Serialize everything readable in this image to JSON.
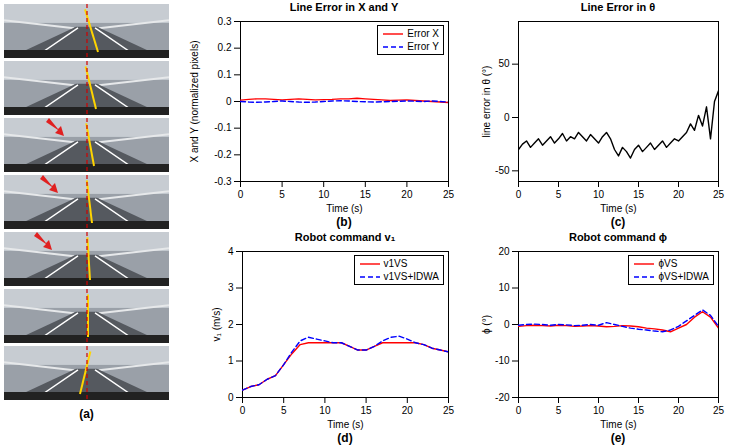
{
  "photo_panel": {
    "panel_label": "(a)"
  },
  "chart_data": [
    {
      "type": "line",
      "title": "Line Error in X and Y",
      "panel_label": "(b)",
      "xlabel": "Time (s)",
      "ylabel": "X and Y (normalized pixels)",
      "xlim": [
        0,
        25
      ],
      "xticks": [
        0,
        5,
        10,
        15,
        20,
        25
      ],
      "ylim": [
        -0.3,
        0.3
      ],
      "yticks": [
        -0.3,
        -0.2,
        -0.1,
        0,
        0.1,
        0.2,
        0.3
      ],
      "legend": "top-right",
      "x": [
        0,
        1,
        2,
        3,
        4,
        5,
        6,
        7,
        8,
        9,
        10,
        11,
        12,
        13,
        14,
        15,
        16,
        17,
        18,
        19,
        20,
        21,
        22,
        23,
        24,
        25
      ],
      "series": [
        {
          "name": "Error X",
          "color": "#ff0000",
          "line_style": "solid",
          "values": [
            0.005,
            0.008,
            0.01,
            0.01,
            0.008,
            0.006,
            0.008,
            0.01,
            0.008,
            0.006,
            0.007,
            0.008,
            0.01,
            0.01,
            0.012,
            0.01,
            0.008,
            0.006,
            0.004,
            0.005,
            0.006,
            0.004,
            0.002,
            0,
            -0.002,
            -0.004
          ]
        },
        {
          "name": "Error Y",
          "color": "#0000ff",
          "line_style": "dashed",
          "values": [
            0,
            -0.002,
            -0.003,
            -0.002,
            0,
            0.002,
            0,
            -0.002,
            -0.003,
            -0.002,
            0,
            0.002,
            0.003,
            0.002,
            0,
            -0.001,
            -0.002,
            -0.001,
            0,
            0.001,
            0.002,
            0.001,
            0,
            0.002,
            0,
            -0.002
          ]
        }
      ]
    },
    {
      "type": "line",
      "title": "Line Error in θ",
      "panel_label": "(c)",
      "xlabel": "Time (s)",
      "ylabel": "line error in θ (°)",
      "xlim": [
        0,
        25
      ],
      "xticks": [
        0,
        5,
        10,
        15,
        20,
        25
      ],
      "ylim": [
        -60,
        90
      ],
      "yticks": [
        -50,
        0,
        50
      ],
      "x": [
        0,
        0.5,
        1,
        1.5,
        2,
        2.5,
        3,
        3.5,
        4,
        4.5,
        5,
        5.5,
        6,
        6.5,
        7,
        7.5,
        8,
        8.5,
        9,
        9.5,
        10,
        10.5,
        11,
        11.5,
        12,
        12.5,
        13,
        13.5,
        14,
        14.5,
        15,
        15.5,
        16,
        16.5,
        17,
        17.5,
        18,
        18.5,
        19,
        19.5,
        20,
        20.5,
        21,
        21.5,
        22,
        22.5,
        23,
        23.5,
        24,
        24.5,
        25
      ],
      "series": [
        {
          "color": "#000000",
          "line_style": "solid",
          "values": [
            -30,
            -25,
            -22,
            -28,
            -24,
            -20,
            -26,
            -22,
            -18,
            -24,
            -20,
            -15,
            -22,
            -18,
            -20,
            -14,
            -18,
            -22,
            -16,
            -20,
            -24,
            -18,
            -14,
            -20,
            -30,
            -36,
            -28,
            -32,
            -38,
            -30,
            -26,
            -32,
            -28,
            -24,
            -30,
            -26,
            -22,
            -28,
            -24,
            -20,
            -22,
            -18,
            -14,
            -6,
            -12,
            2,
            -8,
            10,
            -20,
            15,
            25
          ]
        }
      ]
    },
    {
      "type": "line",
      "title": "Robot command v₁",
      "panel_label": "(d)",
      "xlabel": "Time (s)",
      "ylabel": "v₁ (m/s)",
      "xlim": [
        0,
        25
      ],
      "xticks": [
        0,
        5,
        10,
        15,
        20,
        25
      ],
      "ylim": [
        0,
        4
      ],
      "yticks": [
        0,
        1,
        2,
        3,
        4
      ],
      "legend": "top-right",
      "x": [
        0,
        1,
        2,
        3,
        4,
        5,
        6,
        7,
        8,
        9,
        10,
        11,
        12,
        13,
        14,
        15,
        16,
        17,
        18,
        19,
        20,
        21,
        22,
        23,
        24,
        25
      ],
      "series": [
        {
          "name": "v1VS",
          "color": "#ff0000",
          "line_style": "solid",
          "values": [
            0.2,
            0.3,
            0.35,
            0.5,
            0.6,
            0.9,
            1.2,
            1.45,
            1.5,
            1.5,
            1.5,
            1.5,
            1.5,
            1.4,
            1.3,
            1.3,
            1.4,
            1.5,
            1.5,
            1.5,
            1.5,
            1.5,
            1.45,
            1.35,
            1.3,
            1.25
          ]
        },
        {
          "name": "v1VS+IDWA",
          "color": "#0000ff",
          "line_style": "dashed",
          "values": [
            0.2,
            0.3,
            0.35,
            0.5,
            0.6,
            0.9,
            1.25,
            1.55,
            1.65,
            1.6,
            1.55,
            1.5,
            1.5,
            1.4,
            1.3,
            1.3,
            1.4,
            1.55,
            1.65,
            1.68,
            1.6,
            1.5,
            1.45,
            1.35,
            1.3,
            1.25
          ]
        }
      ]
    },
    {
      "type": "line",
      "title": "Robot command ϕ",
      "panel_label": "(e)",
      "xlabel": "Time (s)",
      "ylabel": "ϕ (°)",
      "xlim": [
        0,
        25
      ],
      "xticks": [
        0,
        5,
        10,
        15,
        20,
        25
      ],
      "ylim": [
        -20,
        20
      ],
      "yticks": [
        -20,
        -10,
        0,
        10,
        20
      ],
      "legend": "top-right",
      "x": [
        0,
        1,
        2,
        3,
        4,
        5,
        6,
        7,
        8,
        9,
        10,
        11,
        12,
        13,
        14,
        15,
        16,
        17,
        18,
        19,
        20,
        21,
        22,
        23,
        24,
        25
      ],
      "series": [
        {
          "name": "ϕVS",
          "color": "#ff0000",
          "line_style": "solid",
          "values": [
            -0.5,
            -0.3,
            -0.2,
            -0.3,
            -0.4,
            -0.2,
            -0.3,
            -0.5,
            -0.4,
            -0.3,
            -0.4,
            -0.6,
            -0.5,
            -0.3,
            -0.4,
            -0.6,
            -1,
            -1.2,
            -1.5,
            -2,
            -1,
            0,
            2,
            3.5,
            2,
            -1
          ]
        },
        {
          "name": "ϕVS+IDWA",
          "color": "#0000ff",
          "line_style": "dashed",
          "values": [
            -0.2,
            0,
            0.1,
            0,
            -0.2,
            0,
            -0.1,
            -0.3,
            -0.2,
            0,
            -0.2,
            0.5,
            0,
            -0.5,
            -1,
            -1.3,
            -1.5,
            -1.8,
            -2,
            -1.5,
            -0.5,
            1,
            2.5,
            4,
            2.5,
            -0.5
          ]
        }
      ]
    }
  ]
}
